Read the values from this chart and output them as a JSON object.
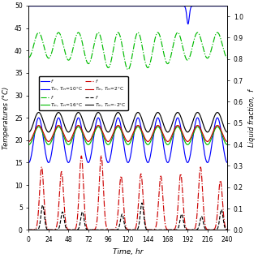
{
  "title": "",
  "xlabel": "Time, hr",
  "ylabel_left": "Temperatures (°C)",
  "ylabel_right": "Liquid fraction,  f",
  "xlim": [
    0,
    240
  ],
  "ylim_left": [
    0,
    50
  ],
  "ylim_right": [
    0,
    1.05
  ],
  "xticks": [
    0,
    24,
    48,
    72,
    96,
    120,
    144,
    168,
    192,
    216,
    240
  ],
  "yticks_left": [
    0,
    5,
    10,
    15,
    20,
    25,
    30,
    35,
    40,
    45,
    50
  ],
  "yticks_right": [
    0,
    0.1,
    0.2,
    0.3,
    0.4,
    0.5,
    0.6,
    0.7,
    0.8,
    0.9,
    1.0
  ],
  "period": 24,
  "colors": {
    "blue": "#0000FF",
    "green": "#00BB00",
    "red": "#CC0000",
    "black": "#000000"
  },
  "figsize": [
    3.18,
    3.18
  ],
  "dpi": 100
}
